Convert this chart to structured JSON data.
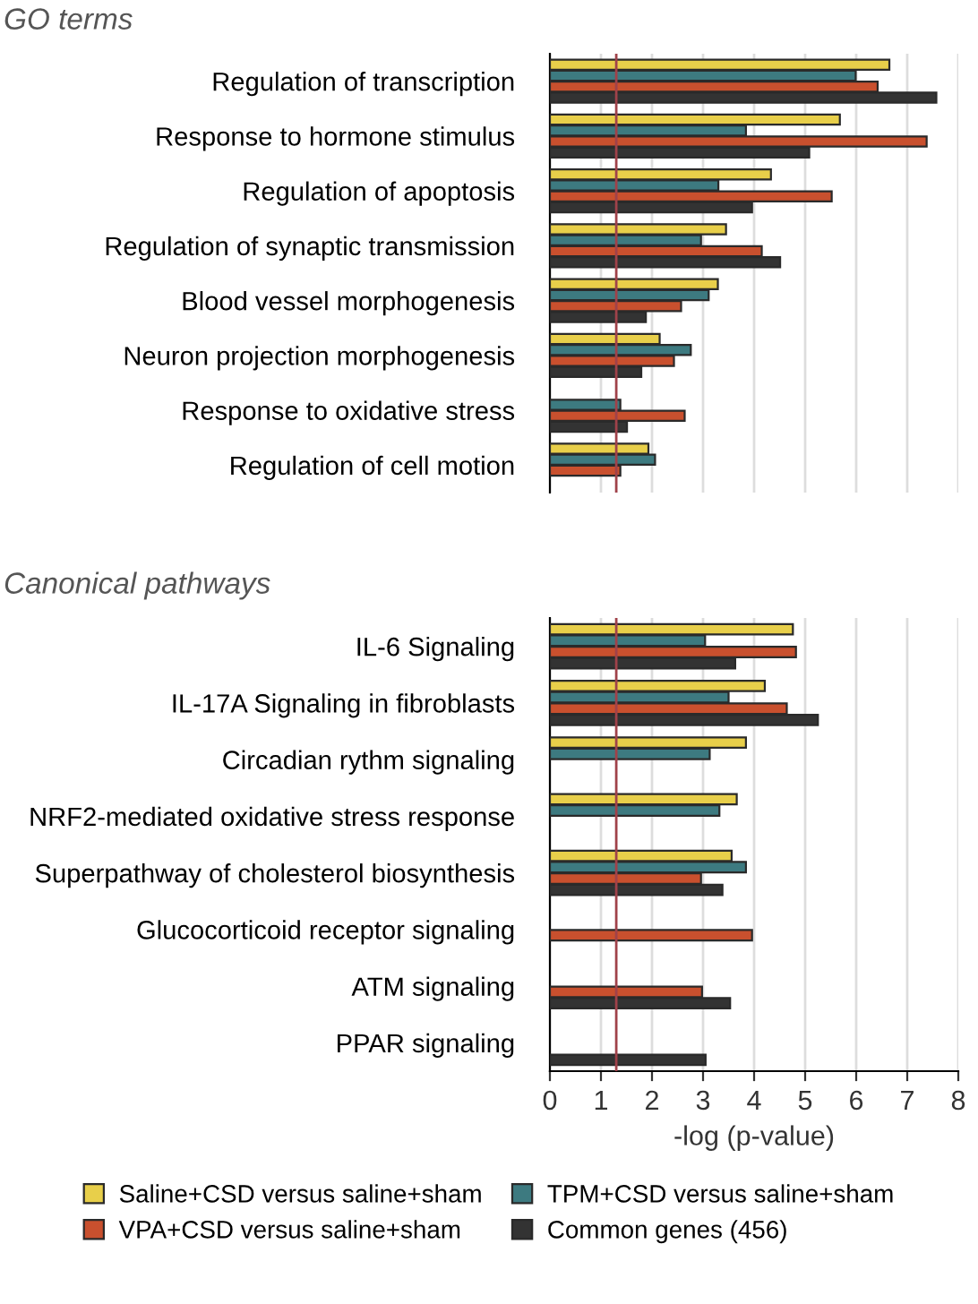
{
  "chart_data": [
    {
      "type": "bar",
      "orientation": "horizontal",
      "title": "GO terms",
      "categories": [
        "Regulation of transcription",
        "Response to hormone stimulus",
        "Regulation of apoptosis",
        "Regulation of synaptic transmission",
        "Blood vessel morphogenesis",
        "Neuron projection morphogenesis",
        "Response to oxidative stress",
        "Regulation of cell motion"
      ],
      "series": [
        {
          "color": "#e8cf4a",
          "values": [
            6.65,
            5.68,
            4.33,
            3.45,
            3.29,
            2.15,
            null,
            1.93
          ]
        },
        {
          "color": "#3d7a80",
          "values": [
            5.99,
            3.84,
            3.3,
            2.96,
            3.11,
            2.76,
            1.38,
            2.06
          ]
        },
        {
          "color": "#c9502e",
          "values": [
            6.42,
            7.38,
            5.52,
            4.15,
            2.57,
            2.43,
            2.64,
            1.38
          ]
        },
        {
          "color": "#333333",
          "values": [
            7.57,
            5.08,
            3.96,
            4.51,
            1.88,
            1.79,
            1.51,
            null
          ]
        }
      ],
      "xlim": [
        0,
        8
      ],
      "xticks": [
        0,
        1,
        2,
        3,
        4,
        5,
        6,
        7,
        8
      ],
      "grid": "x",
      "tick_labels": "y",
      "ref_lines": [
        {
          "axis": "x",
          "value": 1.3,
          "color": "#a0424a"
        }
      ]
    },
    {
      "type": "bar",
      "orientation": "horizontal",
      "title": "Canonical pathways",
      "xlabel": "-log (p-value)",
      "categories": [
        "IL-6 Signaling",
        "IL-17A Signaling in fibroblasts",
        "Circadian rythm signaling",
        "NRF2-mediated oxidative stress response",
        "Superpathway of cholesterol biosynthesis",
        "Glucocorticoid receptor signaling",
        "ATM signaling",
        "PPAR signaling"
      ],
      "series": [
        {
          "name": "Saline+CSD versus saline+sham",
          "color": "#e8cf4a",
          "values": [
            4.76,
            4.21,
            3.84,
            3.66,
            3.56,
            null,
            null,
            null
          ]
        },
        {
          "name": "TPM+CSD versus saline+sham",
          "color": "#3d7a80",
          "values": [
            3.04,
            3.5,
            3.13,
            3.32,
            3.84,
            null,
            null,
            null
          ]
        },
        {
          "name": "VPA+CSD versus saline+sham",
          "color": "#c9502e",
          "values": [
            4.82,
            4.64,
            null,
            null,
            2.96,
            3.96,
            2.98,
            null
          ]
        },
        {
          "name": "Common genes (456)",
          "color": "#333333",
          "values": [
            3.63,
            5.25,
            null,
            null,
            3.38,
            null,
            3.53,
            3.05
          ]
        }
      ],
      "xlim": [
        0,
        8
      ],
      "xticks": [
        0,
        1,
        2,
        3,
        4,
        5,
        6,
        7,
        8
      ],
      "grid": "x",
      "legend": "bottom",
      "ref_lines": [
        {
          "axis": "x",
          "value": 1.3,
          "color": "#a0424a"
        }
      ]
    }
  ]
}
